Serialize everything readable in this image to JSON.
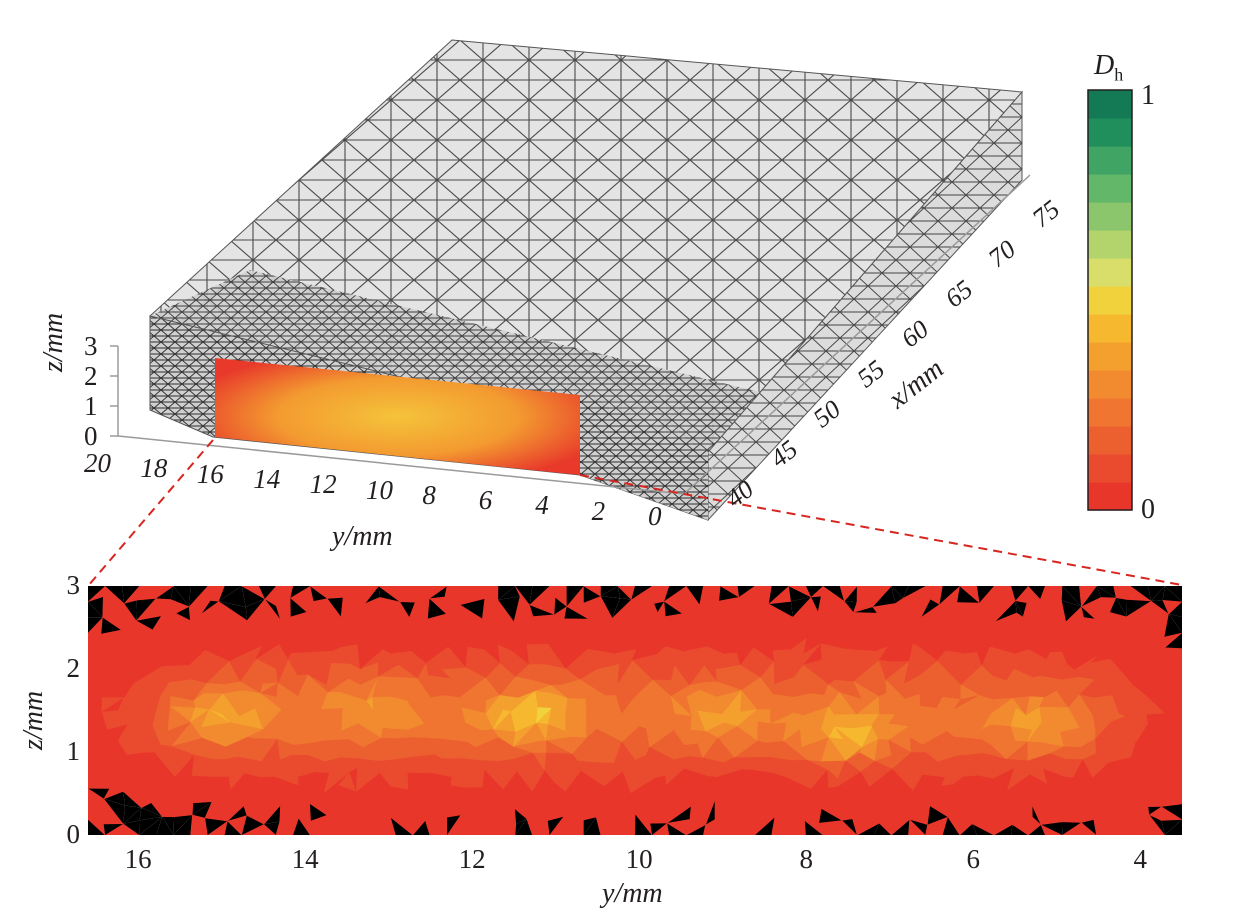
{
  "colorbar": {
    "title_main": "D",
    "title_sub": "h",
    "max_label": "1",
    "min_label": "0",
    "stops": [
      "#e8362b",
      "#ea4a2e",
      "#ec5f2f",
      "#ef7531",
      "#f28a2f",
      "#f4a02e",
      "#f6b82f",
      "#f2d23c",
      "#d9de6b",
      "#b3d36d",
      "#8cc66c",
      "#63b768",
      "#3fa464",
      "#208f5c",
      "#147a56"
    ]
  },
  "view3d": {
    "z_label": "z/mm",
    "y_label": "y/mm",
    "x_label": "x/mm",
    "z_ticks": [
      "3",
      "2",
      "1",
      "0"
    ],
    "y_ticks": [
      "20",
      "18",
      "16",
      "14",
      "12",
      "10",
      "8",
      "6",
      "4",
      "2",
      "0"
    ],
    "x_ticks": [
      "40",
      "45",
      "50",
      "55",
      "60",
      "65",
      "70",
      "75"
    ]
  },
  "section2d": {
    "y_label": "y/mm",
    "z_label": "z/mm",
    "y_ticks": [
      "16",
      "14",
      "12",
      "10",
      "8",
      "6",
      "4"
    ],
    "z_ticks": [
      "3",
      "2",
      "1",
      "0"
    ],
    "ylim": [
      16.6,
      3.5
    ],
    "zlim": [
      0,
      3
    ]
  },
  "field": {
    "hotspots": [
      {
        "y": 15.0,
        "z": 1.45,
        "value": 0.42
      },
      {
        "y": 13.2,
        "z": 1.55,
        "value": 0.34
      },
      {
        "y": 11.3,
        "z": 1.45,
        "value": 0.48
      },
      {
        "y": 9.0,
        "z": 1.45,
        "value": 0.36
      },
      {
        "y": 7.5,
        "z": 1.2,
        "value": 0.44
      },
      {
        "y": 5.2,
        "z": 1.3,
        "value": 0.4
      }
    ]
  }
}
